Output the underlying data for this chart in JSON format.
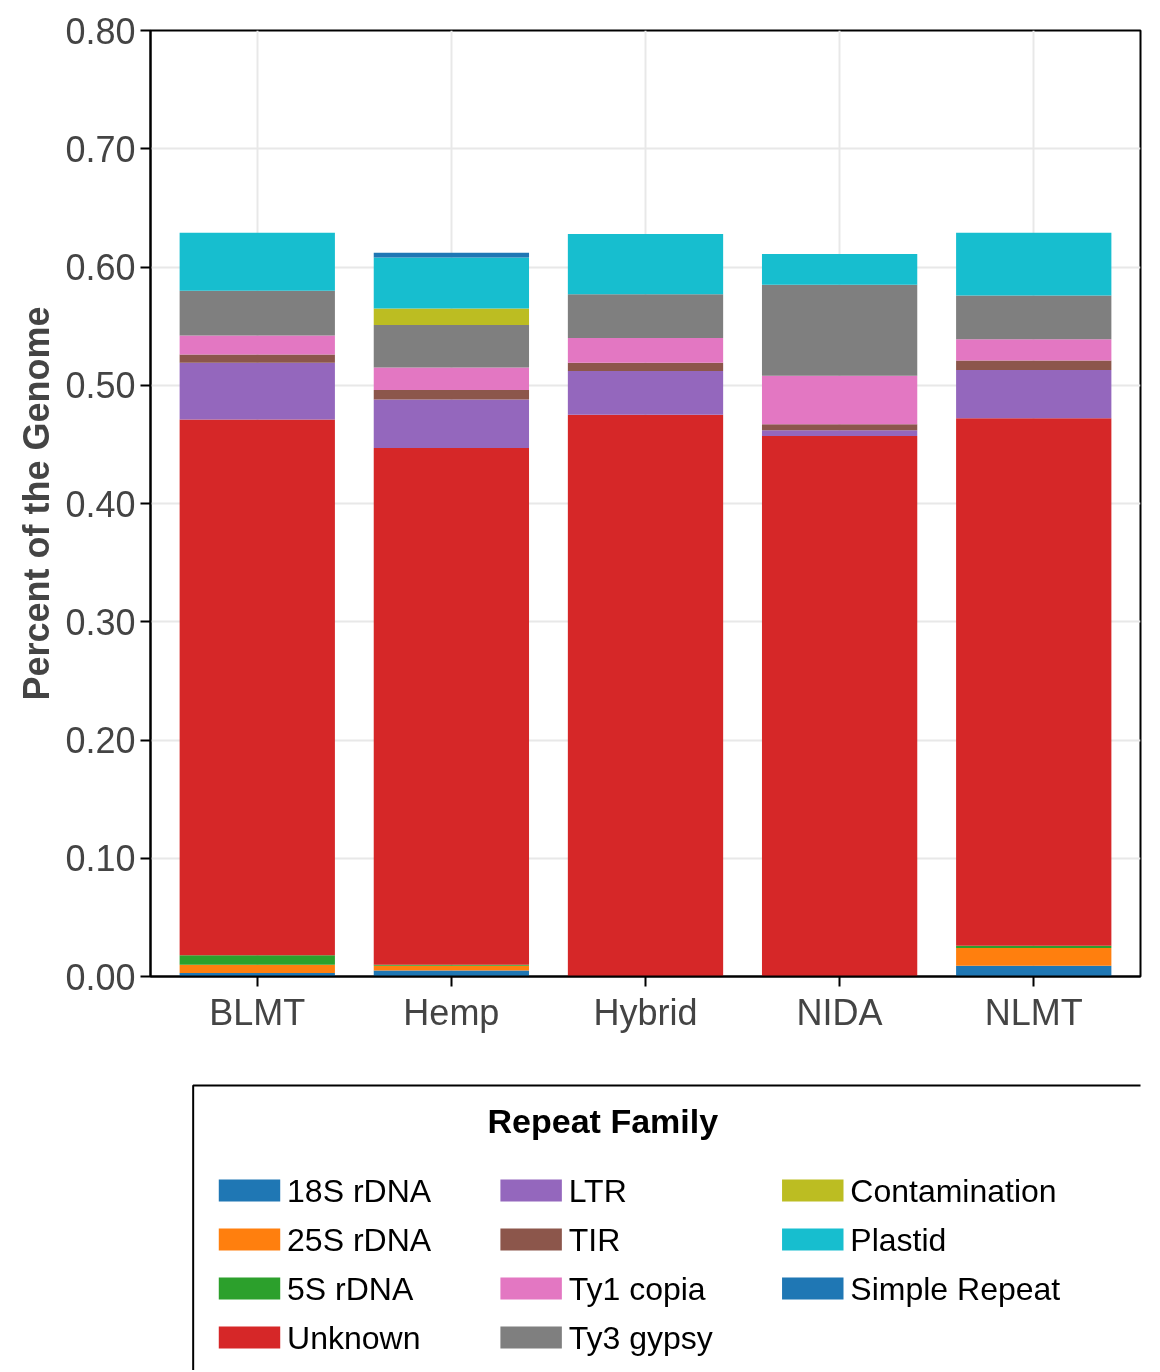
{
  "chart_data": {
    "type": "bar",
    "stacked": true,
    "ylabel": "Percent of the Genome",
    "legend_title": "Repeat Family",
    "categories": [
      "BLMT",
      "Hemp",
      "Hybrid",
      "NIDA",
      "NLMT"
    ],
    "ylim": [
      0,
      0.8
    ],
    "yticks": [
      {
        "value": 0,
        "label": "0.00"
      },
      {
        "value": 0.1,
        "label": "0.10"
      },
      {
        "value": 0.2,
        "label": "0.20"
      },
      {
        "value": 0.3,
        "label": "0.30"
      },
      {
        "value": 0.4,
        "label": "0.40"
      },
      {
        "value": 0.5,
        "label": "0.50"
      },
      {
        "value": 0.6,
        "label": "0.60"
      },
      {
        "value": 0.7,
        "label": "0.70"
      },
      {
        "value": 0.8,
        "label": "0.80"
      }
    ],
    "grid": true,
    "legend": "bottom",
    "series": [
      {
        "name": "18S rDNA",
        "color": "#1f77b4",
        "values": [
          0.003,
          0.005,
          0,
          0,
          0.009
        ]
      },
      {
        "name": "25S rDNA",
        "color": "#ff7f0e",
        "values": [
          0.007,
          0.004,
          0,
          0,
          0.015
        ]
      },
      {
        "name": "5S rDNA",
        "color": "#2ca02c",
        "values": [
          0.008,
          0.001,
          0,
          0,
          0.002
        ]
      },
      {
        "name": "Unknown",
        "color": "#d62728",
        "values": [
          0.453,
          0.437,
          0.475,
          0.457,
          0.446
        ]
      },
      {
        "name": "LTR",
        "color": "#9467bd",
        "values": [
          0.048,
          0.041,
          0.037,
          0.005,
          0.041
        ]
      },
      {
        "name": "TIR",
        "color": "#8c564b",
        "values": [
          0.007,
          0.008,
          0.007,
          0.005,
          0.008
        ]
      },
      {
        "name": "Ty1 copia",
        "color": "#e377c2",
        "values": [
          0.016,
          0.019,
          0.021,
          0.041,
          0.018
        ]
      },
      {
        "name": "Ty3 gypsy",
        "color": "#7f7f7f",
        "values": [
          0.038,
          0.036,
          0.037,
          0.077,
          0.037
        ]
      },
      {
        "name": "Contamination",
        "color": "#bcbd22",
        "values": [
          0,
          0.014,
          0,
          0,
          0
        ]
      },
      {
        "name": "Plastid",
        "color": "#17becf",
        "values": [
          0.049,
          0.043,
          0.051,
          0.026,
          0.053
        ]
      },
      {
        "name": "Simple Repeat",
        "color": "#1f77b4",
        "values": [
          0,
          0.004,
          0,
          0,
          0
        ]
      }
    ]
  }
}
